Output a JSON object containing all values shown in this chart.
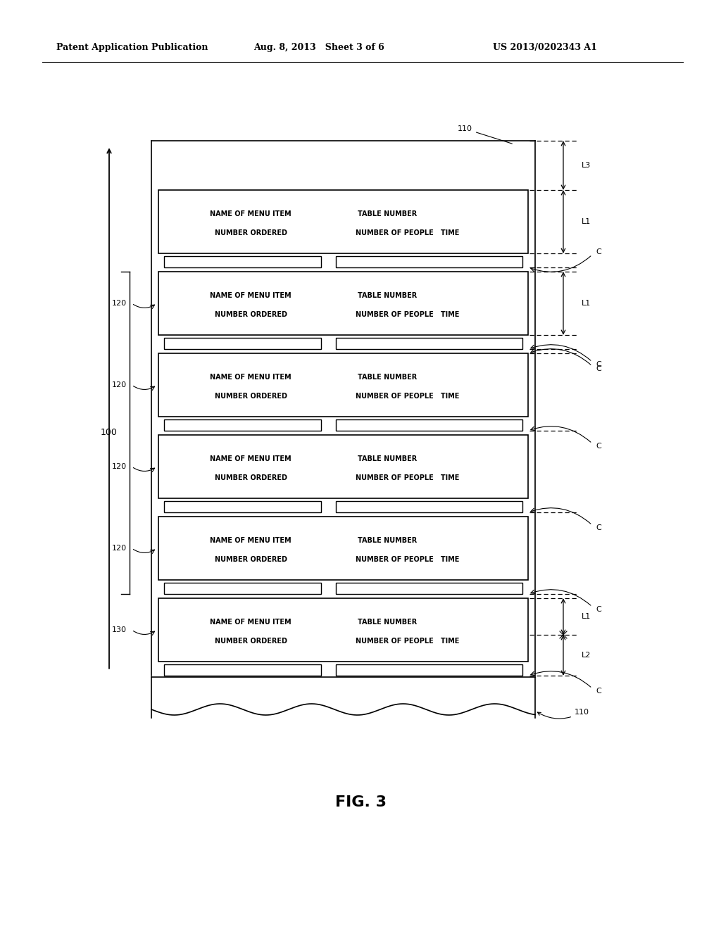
{
  "header_left": "Patent Application Publication",
  "header_mid": "Aug. 8, 2013   Sheet 3 of 6",
  "header_right": "US 2013/0202343 A1",
  "fig_label": "FIG. 3",
  "bg_color": "#ffffff",
  "label_110_top": "110",
  "label_110_bot": "110",
  "label_100": "100",
  "label_120_list": [
    "120",
    "120",
    "120",
    "120"
  ],
  "label_130": "130",
  "label_L1": "L1",
  "label_L2": "L2",
  "label_L3": "L3",
  "label_C": "C",
  "row_text_line1": "NAME OF MENU ITEM",
  "row_text_line2": "NUMBER ORDERED",
  "row_text_line3": "TABLE NUMBER",
  "row_text_line4": "NUMBER OF PEOPLE   TIME"
}
